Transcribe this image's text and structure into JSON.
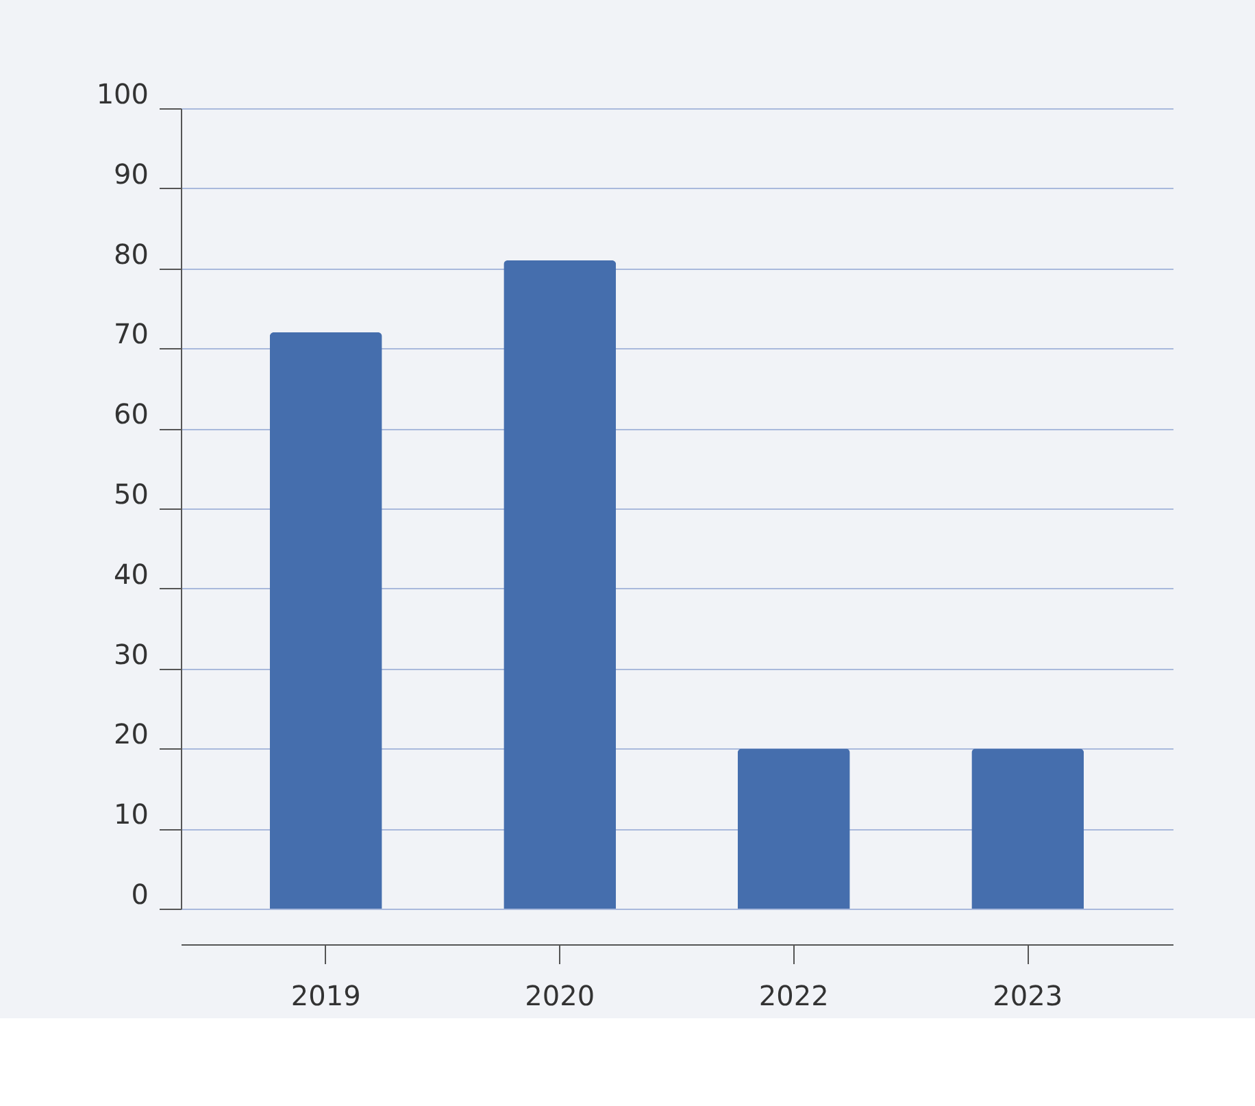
{
  "chart_data": {
    "type": "bar",
    "categories": [
      "2019",
      "2020",
      "2022",
      "2023"
    ],
    "values": [
      72,
      81,
      20,
      20
    ],
    "color": "#456ead",
    "ylim": [
      0,
      100
    ],
    "yticks": [
      0,
      10,
      20,
      30,
      40,
      50,
      60,
      70,
      80,
      90,
      100
    ],
    "grid": "y"
  }
}
